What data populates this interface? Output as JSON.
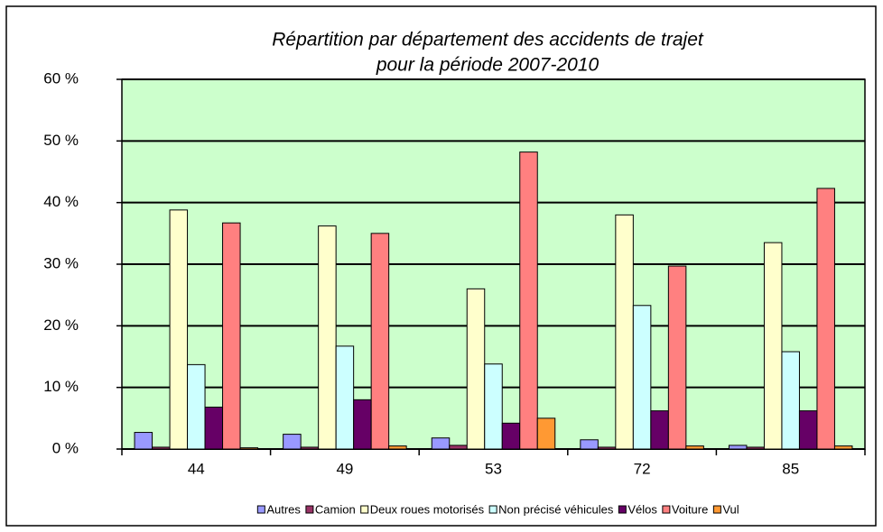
{
  "chart_data": {
    "type": "bar",
    "title": [
      "Répartition par département des accidents de trajet",
      "pour la période 2007-2010"
    ],
    "categories": [
      "44",
      "49",
      "53",
      "72",
      "85"
    ],
    "series": [
      {
        "name": "Autres",
        "color": "#9999ff",
        "values": [
          2.7,
          2.4,
          1.8,
          1.5,
          0.6
        ]
      },
      {
        "name": "Camion",
        "color": "#993366",
        "values": [
          0.3,
          0.3,
          0.6,
          0.3,
          0.3
        ]
      },
      {
        "name": "Deux roues motorisés",
        "color": "#ffffcc",
        "values": [
          38.8,
          36.2,
          26.0,
          38.0,
          33.5
        ]
      },
      {
        "name": "Non précisé véhicules",
        "color": "#ccffff",
        "values": [
          13.7,
          16.7,
          13.8,
          23.3,
          15.8
        ]
      },
      {
        "name": "Vélos",
        "color": "#660066",
        "values": [
          6.8,
          8.0,
          4.2,
          6.2,
          6.2
        ]
      },
      {
        "name": "Voiture",
        "color": "#ff8080",
        "values": [
          36.7,
          35.0,
          48.2,
          29.7,
          42.3
        ]
      },
      {
        "name": "Vul",
        "color": "#ff9933",
        "values": [
          0.2,
          0.5,
          5.0,
          0.5,
          0.5
        ]
      }
    ],
    "ylim": [
      0,
      60
    ],
    "yticks": [
      {
        "value": 0,
        "label": "0 %"
      },
      {
        "value": 10,
        "label": "10 %"
      },
      {
        "value": 20,
        "label": "20 %"
      },
      {
        "value": 30,
        "label": "30 %"
      },
      {
        "value": 40,
        "label": "40 %"
      },
      {
        "value": 50,
        "label": "50 %"
      },
      {
        "value": 60,
        "label": "60 %"
      }
    ],
    "grid": true,
    "legend": "bottom"
  }
}
